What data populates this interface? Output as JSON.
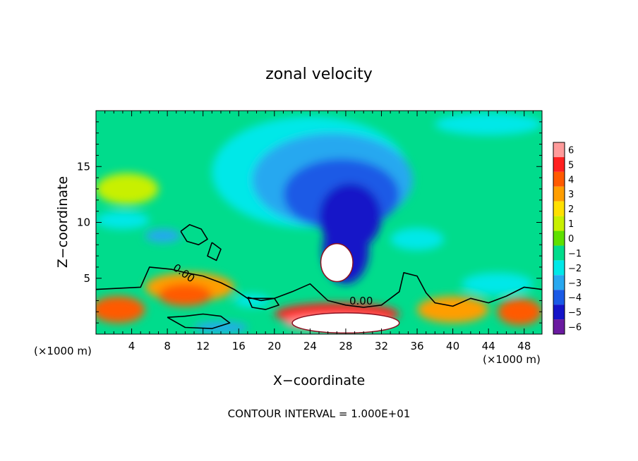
{
  "chart_data": {
    "type": "heatmap",
    "title": "zonal velocity",
    "xlabel": "X−coordinate",
    "ylabel": "Z−coordinate",
    "x_unit_left": "(×1000 m)",
    "x_unit_right": "(×1000 m)",
    "x_range": [
      0,
      50
    ],
    "y_range": [
      0,
      20
    ],
    "x_ticks": [
      4,
      8,
      12,
      16,
      20,
      24,
      28,
      32,
      36,
      40,
      44,
      48
    ],
    "y_ticks": [
      5,
      10,
      15
    ],
    "colorbar_levels": [
      6,
      5,
      4,
      3,
      2,
      1,
      0,
      -1,
      -2,
      -3,
      -4,
      -5,
      -6
    ],
    "colorbar_labels": [
      "6",
      "5",
      "4",
      "3",
      "2",
      "1",
      "0",
      "−1",
      "−2",
      "−3",
      "−4",
      "−5",
      "−6"
    ],
    "colorbar_colors": [
      "#ff9b9b",
      "#ff2020",
      "#ff5a00",
      "#ff9e00",
      "#ffe000",
      "#c8f000",
      "#5ee000",
      "#00dc8c",
      "#00e8e8",
      "#28a8f0",
      "#1a5ae6",
      "#1414c8",
      "#6a1aa0"
    ],
    "contour_labels": [
      "0.00",
      "0.00"
    ],
    "contour_interval_text": "CONTOUR INTERVAL = 1.000E+01",
    "blobs": [
      {
        "value": -2.0,
        "x": 24,
        "y": 14.5,
        "rx": 11,
        "ry": 5.0
      },
      {
        "value": -3.0,
        "x": 26.5,
        "y": 13.8,
        "rx": 9,
        "ry": 4.2
      },
      {
        "value": -4.0,
        "x": 27.5,
        "y": 12.5,
        "rx": 6.5,
        "ry": 3.2
      },
      {
        "value": -4.8,
        "x": 28.5,
        "y": 10.5,
        "rx": 3.5,
        "ry": 3.0
      },
      {
        "value": -5.2,
        "x": 28,
        "y": 7.5,
        "rx": 2.6,
        "ry": 3.0
      },
      {
        "value": -2.2,
        "x": 44,
        "y": 18.8,
        "rx": 6,
        "ry": 1.0
      },
      {
        "value": -2.0,
        "x": 3,
        "y": 10.2,
        "rx": 3,
        "ry": 0.8
      },
      {
        "value": -3.0,
        "x": 7.5,
        "y": 8.8,
        "rx": 2,
        "ry": 0.6
      },
      {
        "value": -2.2,
        "x": 36,
        "y": 8.5,
        "rx": 3,
        "ry": 1.0
      },
      {
        "value": -2.0,
        "x": 45,
        "y": 4.5,
        "rx": 4,
        "ry": 1.0
      },
      {
        "value": 1.0,
        "x": 3.5,
        "y": 13,
        "rx": 3.5,
        "ry": 1.4
      },
      {
        "value": 2.5,
        "x": 10.5,
        "y": 4.2,
        "rx": 5,
        "ry": 1.3
      },
      {
        "value": 3.5,
        "x": 10,
        "y": 3.5,
        "rx": 3,
        "ry": 1.0
      },
      {
        "value": 3.5,
        "x": 2.5,
        "y": 2.2,
        "rx": 3,
        "ry": 1.2
      },
      {
        "value": 3.0,
        "x": 40,
        "y": 2.2,
        "rx": 4,
        "ry": 1.2
      },
      {
        "value": 3.5,
        "x": 47.5,
        "y": 2.0,
        "rx": 2.5,
        "ry": 1.2
      },
      {
        "value": 5.0,
        "x": 27,
        "y": 1.8,
        "rx": 7,
        "ry": 1.0
      },
      {
        "value": 6.0,
        "x": 27,
        "y": 1.0,
        "rx": 6,
        "ry": 0.7
      },
      {
        "value": -2.5,
        "x": 17.5,
        "y": 3.0,
        "rx": 2,
        "ry": 0.6
      },
      {
        "value": -3.5,
        "x": 14,
        "y": 0.6,
        "rx": 3,
        "ry": 0.5
      }
    ],
    "white_regions": [
      {
        "x": 27,
        "y": 6.4,
        "rx": 1.8,
        "ry": 1.7
      },
      {
        "x": 28,
        "y": 1.0,
        "rx": 6,
        "ry": 0.9
      }
    ],
    "contours": [
      [
        [
          0,
          4.0
        ],
        [
          5,
          4.2
        ],
        [
          6,
          6.0
        ],
        [
          8.5,
          5.8
        ],
        [
          10,
          5.5
        ],
        [
          12,
          5.2
        ],
        [
          14,
          4.6
        ],
        [
          15.5,
          4.0
        ],
        [
          17,
          3.2
        ],
        [
          20,
          3.2
        ],
        [
          22,
          3.8
        ],
        [
          24,
          4.5
        ],
        [
          26,
          3.0
        ],
        [
          28,
          2.6
        ],
        [
          30,
          2.4
        ],
        [
          32,
          2.6
        ],
        [
          34,
          3.8
        ],
        [
          34.5,
          5.5
        ],
        [
          36,
          5.2
        ],
        [
          37,
          3.7
        ],
        [
          38,
          2.8
        ],
        [
          40,
          2.5
        ],
        [
          42,
          3.2
        ],
        [
          44,
          2.8
        ],
        [
          46,
          3.4
        ],
        [
          48,
          4.2
        ],
        [
          50,
          4.0
        ]
      ],
      [
        [
          9.5,
          9.2
        ],
        [
          10.5,
          9.8
        ],
        [
          11.8,
          9.4
        ],
        [
          12.5,
          8.5
        ],
        [
          11.5,
          8.0
        ],
        [
          10.2,
          8.3
        ],
        [
          9.5,
          9.2
        ]
      ],
      [
        [
          17,
          3.3
        ],
        [
          18.5,
          3.0
        ],
        [
          20,
          3.2
        ],
        [
          20.5,
          2.6
        ],
        [
          19,
          2.2
        ],
        [
          17.5,
          2.4
        ],
        [
          17,
          3.3
        ]
      ],
      [
        [
          8,
          1.5
        ],
        [
          10,
          1.6
        ],
        [
          12,
          1.8
        ],
        [
          14,
          1.6
        ],
        [
          15,
          1.0
        ],
        [
          13,
          0.5
        ],
        [
          10,
          0.6
        ],
        [
          8,
          1.5
        ]
      ],
      [
        [
          13,
          8.2
        ],
        [
          14,
          7.6
        ],
        [
          13.5,
          6.6
        ],
        [
          12.5,
          7.0
        ],
        [
          13,
          8.2
        ]
      ]
    ]
  }
}
